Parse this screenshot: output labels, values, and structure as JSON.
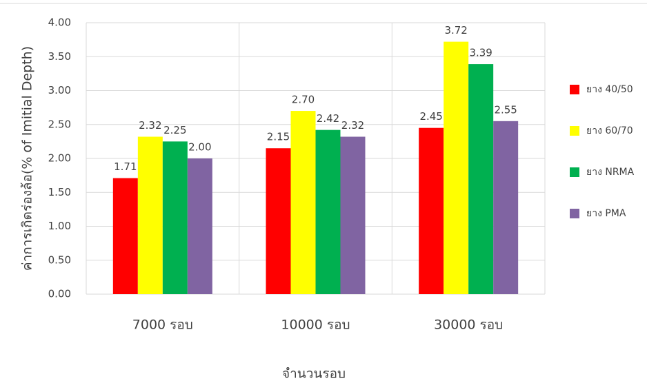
{
  "chart_data": {
    "type": "bar",
    "categories": [
      "7000 รอบ",
      "10000 รอบ",
      "30000 รอบ"
    ],
    "x_label": "จำนวนรอบ",
    "y_label": "ค่าการเกิดร่องล้อ(% of Imitial Depth)",
    "series": [
      {
        "name": "ยาง 40/50",
        "color": "#ff0000",
        "values": [
          1.71,
          2.15,
          2.45
        ],
        "value_labels": [
          "1.71",
          "2.15",
          "2.45"
        ]
      },
      {
        "name": "ยาง 60/70",
        "color": "#ffff00",
        "values": [
          2.32,
          2.7,
          3.72
        ],
        "value_labels": [
          "2.32",
          "2.70",
          "3.72"
        ]
      },
      {
        "name": "ยาง NRMA",
        "color": "#00b050",
        "values": [
          2.25,
          2.42,
          3.39
        ],
        "value_labels": [
          "2.25",
          "2.42",
          "3.39"
        ]
      },
      {
        "name": "ยาง PMA",
        "color": "#8064a2",
        "values": [
          2.0,
          2.32,
          2.55
        ],
        "value_labels": [
          "2.00",
          "2.32",
          "2.55"
        ]
      }
    ],
    "ylim": [
      0,
      4
    ],
    "yticks": [
      {
        "value": 0,
        "label": "0.00"
      },
      {
        "value": 0.5,
        "label": "0.50"
      },
      {
        "value": 1,
        "label": "1.00"
      },
      {
        "value": 1.5,
        "label": "1.50"
      },
      {
        "value": 2,
        "label": "2.00"
      },
      {
        "value": 2.5,
        "label": "2.50"
      },
      {
        "value": 3,
        "label": "3.00"
      },
      {
        "value": 3.5,
        "label": "3.50"
      },
      {
        "value": 4,
        "label": "4.00"
      }
    ],
    "grid": true,
    "legend": "right"
  }
}
